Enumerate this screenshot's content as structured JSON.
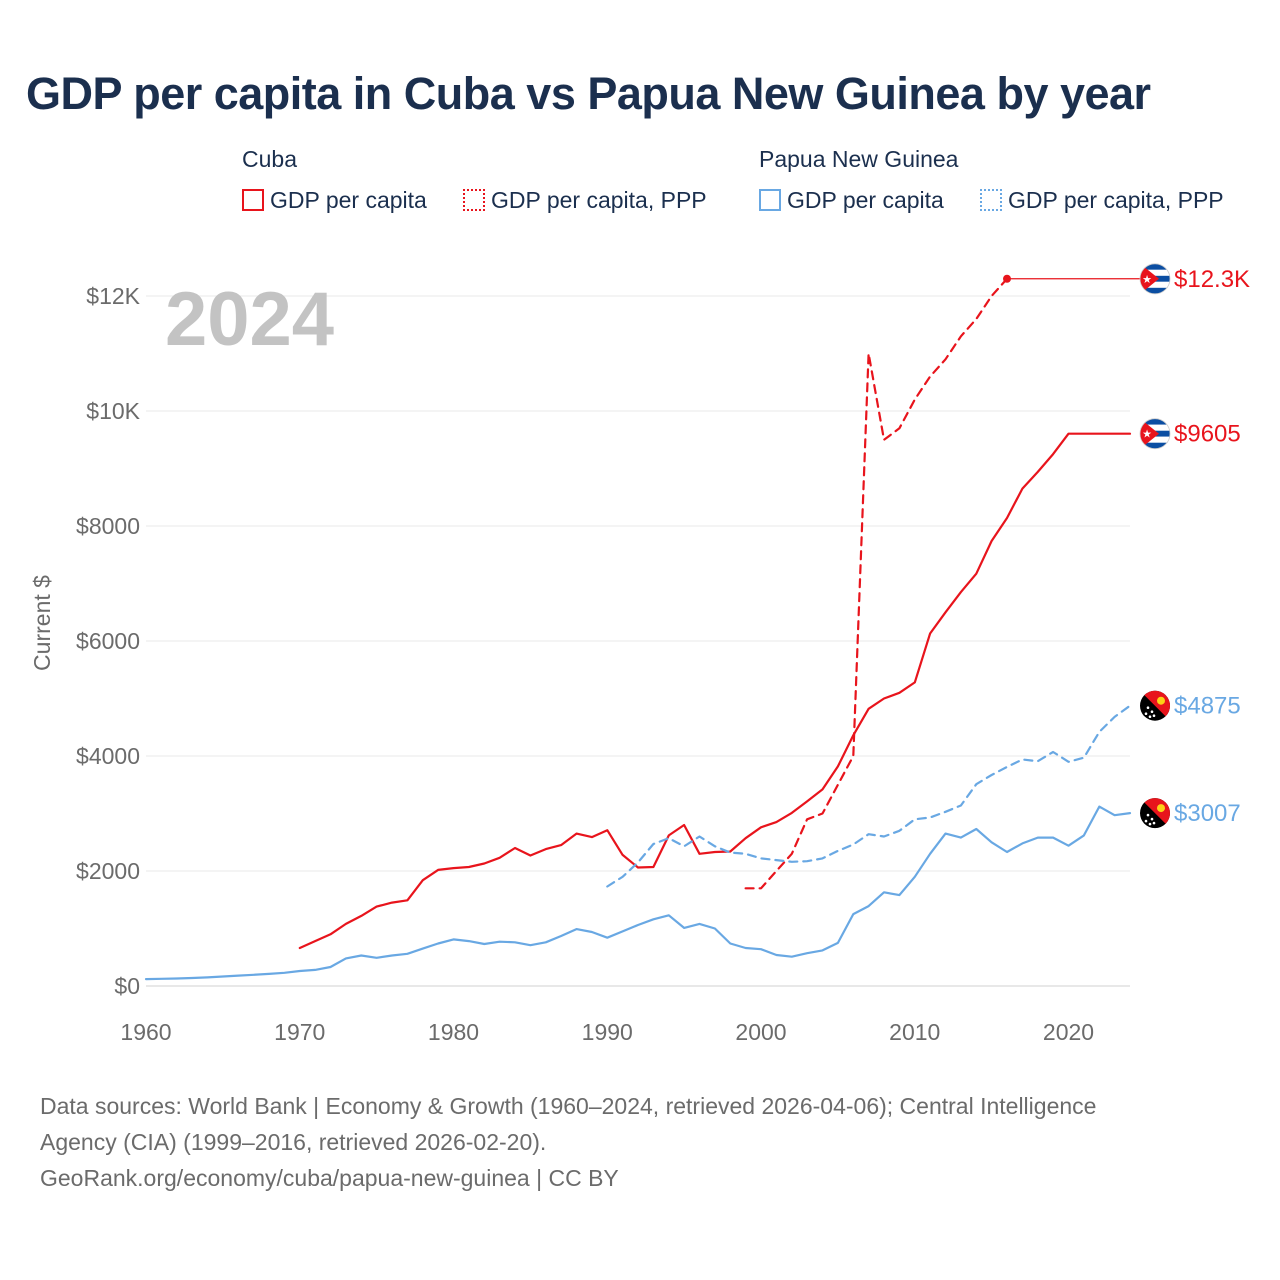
{
  "title": "GDP per capita in Cuba vs Papua New Guinea by year",
  "legend": {
    "groups": [
      {
        "name": "Cuba",
        "items": [
          {
            "label": "GDP per capita",
            "style": "solid",
            "color": "#e8141c"
          },
          {
            "label": "GDP per capita, PPP",
            "style": "dotted",
            "color": "#e8141c"
          }
        ]
      },
      {
        "name": "Papua New Guinea",
        "items": [
          {
            "label": "GDP per capita",
            "style": "solid",
            "color": "#69a8e3"
          },
          {
            "label": "GDP per capita, PPP",
            "style": "dotted",
            "color": "#69a8e3"
          }
        ]
      }
    ]
  },
  "chart_data": {
    "type": "line",
    "title": "GDP per capita in Cuba vs Papua New Guinea by year",
    "year_watermark": "2024",
    "ylabel": "Current $",
    "xlabel": "",
    "xlim": [
      1960,
      2024
    ],
    "ylim": [
      0,
      12800
    ],
    "x_ticks": [
      1960,
      1970,
      1980,
      1990,
      2000,
      2010,
      2020
    ],
    "y_ticks": [
      {
        "value": 0,
        "label": "$0"
      },
      {
        "value": 2000,
        "label": "$2000"
      },
      {
        "value": 4000,
        "label": "$4000"
      },
      {
        "value": 6000,
        "label": "$6000"
      },
      {
        "value": 8000,
        "label": "$8000"
      },
      {
        "value": 10000,
        "label": "$10K"
      },
      {
        "value": 12000,
        "label": "$12K"
      }
    ],
    "grid": true,
    "series": [
      {
        "name": "Cuba GDP per capita",
        "country": "Cuba",
        "color": "#e8141c",
        "dash": "solid",
        "end_label": "$9605",
        "x": [
          1970,
          1971,
          1972,
          1973,
          1974,
          1975,
          1976,
          1977,
          1978,
          1979,
          1980,
          1981,
          1982,
          1983,
          1984,
          1985,
          1986,
          1987,
          1988,
          1989,
          1990,
          1991,
          1992,
          1993,
          1994,
          1995,
          1996,
          1997,
          1998,
          1999,
          2000,
          2001,
          2002,
          2003,
          2004,
          2005,
          2006,
          2007,
          2008,
          2009,
          2010,
          2011,
          2012,
          2013,
          2014,
          2015,
          2016,
          2017,
          2018,
          2019,
          2020,
          2021,
          2022,
          2023,
          2024
        ],
        "values": [
          660,
          780,
          900,
          1080,
          1220,
          1380,
          1450,
          1490,
          1840,
          2020,
          2050,
          2070,
          2130,
          2230,
          2400,
          2270,
          2380,
          2450,
          2650,
          2590,
          2710,
          2280,
          2060,
          2070,
          2620,
          2800,
          2300,
          2330,
          2340,
          2570,
          2760,
          2850,
          3010,
          3210,
          3420,
          3820,
          4360,
          4820,
          5000,
          5100,
          5280,
          6130,
          6500,
          6850,
          7170,
          7740,
          8140,
          8650,
          8940,
          9250,
          9605,
          9605,
          9605,
          9605,
          9605
        ]
      },
      {
        "name": "Cuba GDP per capita, PPP",
        "country": "Cuba",
        "color": "#e8141c",
        "dash": "dashed",
        "end_label": "$12.3K",
        "x": [
          1999,
          2000,
          2001,
          2002,
          2003,
          2004,
          2005,
          2006,
          2007,
          2008,
          2009,
          2010,
          2011,
          2012,
          2013,
          2014,
          2015,
          2016
        ],
        "values": [
          1700,
          1700,
          2000,
          2300,
          2900,
          3000,
          3500,
          4000,
          11000,
          9500,
          9700,
          10200,
          10600,
          10900,
          11300,
          11600,
          12000,
          12300
        ]
      },
      {
        "name": "Papua New Guinea GDP per capita",
        "country": "Papua New Guinea",
        "color": "#69a8e3",
        "dash": "solid",
        "end_label": "$3007",
        "x": [
          1960,
          1961,
          1962,
          1963,
          1964,
          1965,
          1966,
          1967,
          1968,
          1969,
          1970,
          1971,
          1972,
          1973,
          1974,
          1975,
          1976,
          1977,
          1978,
          1979,
          1980,
          1981,
          1982,
          1983,
          1984,
          1985,
          1986,
          1987,
          1988,
          1989,
          1990,
          1991,
          1992,
          1993,
          1994,
          1995,
          1996,
          1997,
          1998,
          1999,
          2000,
          2001,
          2002,
          2003,
          2004,
          2005,
          2006,
          2007,
          2008,
          2009,
          2010,
          2011,
          2012,
          2013,
          2014,
          2015,
          2016,
          2017,
          2018,
          2019,
          2020,
          2021,
          2022,
          2023,
          2024
        ],
        "values": [
          120,
          125,
          130,
          140,
          150,
          165,
          180,
          195,
          210,
          230,
          260,
          280,
          330,
          480,
          530,
          490,
          530,
          560,
          650,
          740,
          810,
          780,
          730,
          770,
          760,
          710,
          760,
          870,
          990,
          940,
          840,
          950,
          1060,
          1160,
          1230,
          1010,
          1080,
          1000,
          740,
          660,
          640,
          540,
          510,
          570,
          620,
          750,
          1250,
          1390,
          1630,
          1580,
          1900,
          2300,
          2650,
          2580,
          2730,
          2500,
          2330,
          2480,
          2580,
          2580,
          2440,
          2620,
          3120,
          2970,
          3007
        ]
      },
      {
        "name": "Papua New Guinea GDP per capita, PPP",
        "country": "Papua New Guinea",
        "color": "#69a8e3",
        "dash": "dashed",
        "end_label": "$4875",
        "x": [
          1990,
          1991,
          1992,
          1993,
          1994,
          1995,
          1996,
          1997,
          1998,
          1999,
          2000,
          2001,
          2002,
          2003,
          2004,
          2005,
          2006,
          2007,
          2008,
          2009,
          2010,
          2011,
          2012,
          2013,
          2014,
          2015,
          2016,
          2017,
          2018,
          2019,
          2020,
          2021,
          2022,
          2023,
          2024
        ],
        "values": [
          1730,
          1900,
          2150,
          2470,
          2570,
          2430,
          2600,
          2430,
          2320,
          2300,
          2220,
          2190,
          2160,
          2170,
          2220,
          2350,
          2460,
          2640,
          2600,
          2700,
          2900,
          2930,
          3030,
          3140,
          3510,
          3670,
          3810,
          3940,
          3910,
          4070,
          3900,
          3970,
          4420,
          4680,
          4875
        ]
      }
    ]
  },
  "footer": {
    "sources_line1": "Data sources: World Bank | Economy & Growth (1960–2024, retrieved 2026-04-06); Central Intelligence",
    "sources_line2": "Agency (CIA) (1999–2016, retrieved 2026-02-20).",
    "credit": "GeoRank.org/economy/cuba/papua-new-guinea | CC BY"
  }
}
